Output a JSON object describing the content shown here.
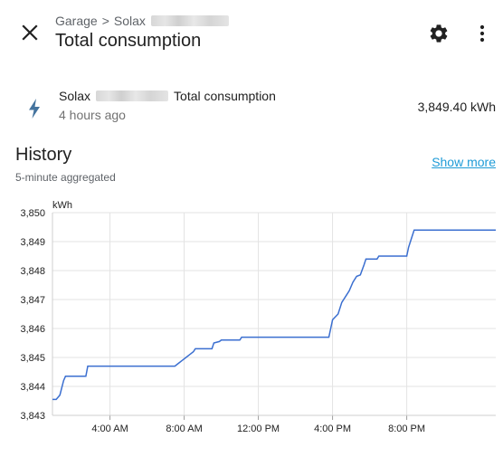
{
  "header": {
    "breadcrumb_area": "Garage",
    "breadcrumb_separator": ">",
    "breadcrumb_device": "Solax",
    "title": "Total consumption",
    "icons": {
      "close": "close-icon",
      "settings": "gear-icon",
      "more": "more-vert-icon"
    }
  },
  "entity": {
    "name_prefix": "Solax",
    "name_suffix": "Total consumption",
    "last_changed": "4 hours ago",
    "value": "3,849.40 kWh",
    "icon": "lightning-bolt-icon",
    "icon_color": "#44739e"
  },
  "history": {
    "title": "History",
    "subtitle": "5-minute aggregated",
    "show_more_label": "Show more",
    "show_more_color": "#1e9bd7"
  },
  "chart_data": {
    "type": "line",
    "ylabel": "kWh",
    "ylim": [
      3843,
      3850
    ],
    "yticks": [
      "3,850",
      "3,849",
      "3,848",
      "3,847",
      "3,846",
      "3,845",
      "3,844",
      "3,843"
    ],
    "xlim": [
      0.9,
      24.8
    ],
    "xticks": [
      {
        "value": 4,
        "label": "4:00 AM"
      },
      {
        "value": 8,
        "label": "8:00 AM"
      },
      {
        "value": 12,
        "label": "12:00 PM"
      },
      {
        "value": 16,
        "label": "4:00 PM"
      },
      {
        "value": 20,
        "label": "8:00 PM"
      }
    ],
    "grid": true,
    "line_color": "#3b6fd0",
    "series": [
      {
        "values": [
          [
            0.9,
            3843.55
          ],
          [
            1.1,
            3843.55
          ],
          [
            1.3,
            3843.7
          ],
          [
            1.5,
            3844.2
          ],
          [
            1.6,
            3844.35
          ],
          [
            2.7,
            3844.35
          ],
          [
            2.8,
            3844.7
          ],
          [
            7.5,
            3844.7
          ],
          [
            7.7,
            3844.8
          ],
          [
            7.9,
            3844.9
          ],
          [
            8.1,
            3845.0
          ],
          [
            8.3,
            3845.1
          ],
          [
            8.5,
            3845.2
          ],
          [
            8.6,
            3845.3
          ],
          [
            9.5,
            3845.3
          ],
          [
            9.6,
            3845.5
          ],
          [
            9.9,
            3845.55
          ],
          [
            10.0,
            3845.6
          ],
          [
            11.0,
            3845.6
          ],
          [
            11.1,
            3845.7
          ],
          [
            15.8,
            3845.7
          ],
          [
            16.0,
            3846.3
          ],
          [
            16.3,
            3846.5
          ],
          [
            16.5,
            3846.9
          ],
          [
            16.7,
            3847.1
          ],
          [
            16.9,
            3847.3
          ],
          [
            17.1,
            3847.6
          ],
          [
            17.3,
            3847.8
          ],
          [
            17.5,
            3847.85
          ],
          [
            17.7,
            3848.2
          ],
          [
            17.8,
            3848.4
          ],
          [
            18.4,
            3848.4
          ],
          [
            18.5,
            3848.5
          ],
          [
            20.0,
            3848.5
          ],
          [
            20.1,
            3848.8
          ],
          [
            20.3,
            3849.2
          ],
          [
            20.4,
            3849.4
          ],
          [
            24.8,
            3849.4
          ]
        ]
      }
    ]
  }
}
